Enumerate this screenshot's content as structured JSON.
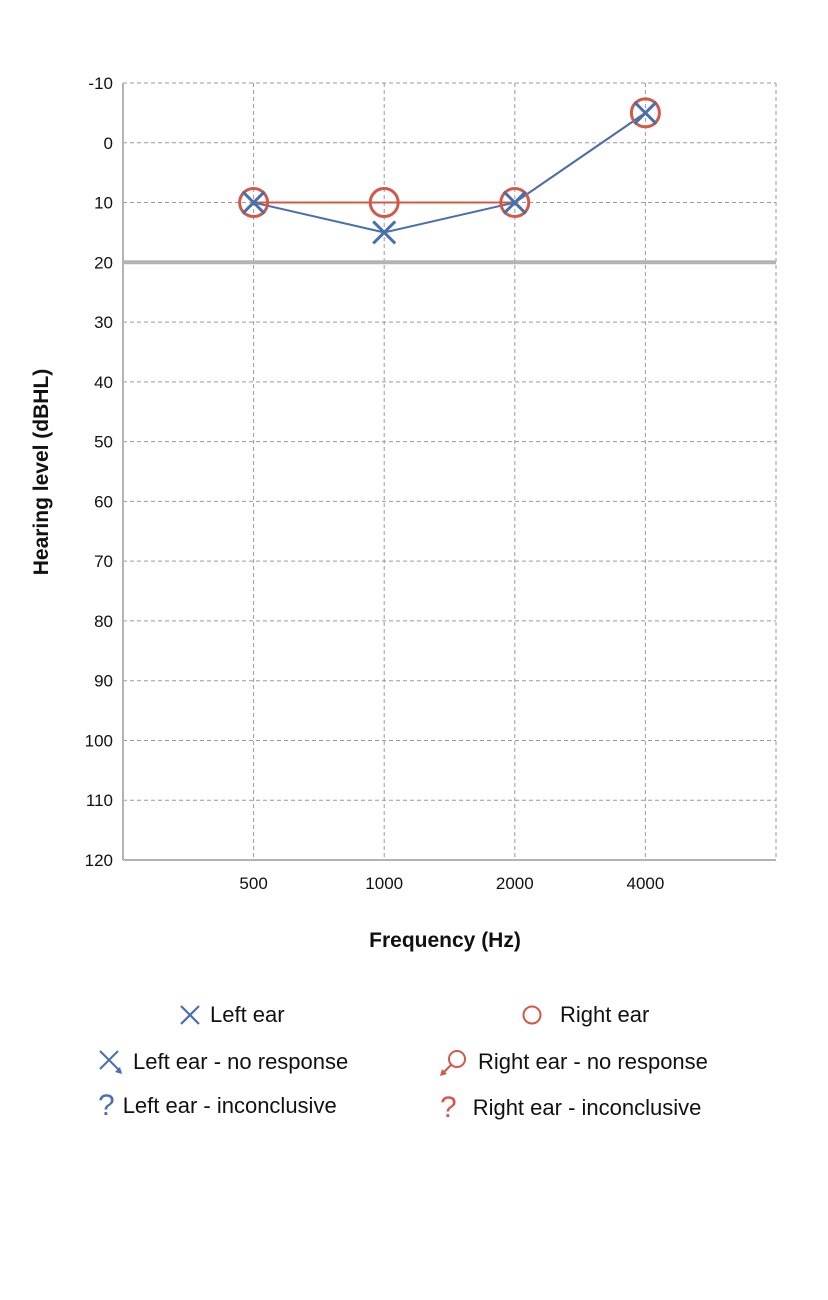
{
  "chart_data": {
    "type": "line",
    "title": "",
    "xlabel": "Frequency (Hz)",
    "ylabel": "Hearing level (dBHL)",
    "categories": [
      "500",
      "1000",
      "2000",
      "4000"
    ],
    "y_ticks": [
      -10,
      0,
      10,
      20,
      30,
      40,
      50,
      60,
      70,
      80,
      90,
      100,
      110,
      120
    ],
    "ylim": [
      -10,
      120
    ],
    "y_inverted": true,
    "grid": true,
    "reference_line": {
      "y": 20,
      "color": "#b3b3b3"
    },
    "series": [
      {
        "name": "Left ear",
        "marker": "x",
        "color": "#4a6fae",
        "values": [
          10,
          15,
          10,
          -5
        ]
      },
      {
        "name": "Right ear",
        "marker": "o",
        "color": "#d05a48",
        "values": [
          10,
          10,
          10,
          -5
        ]
      }
    ],
    "legend_position": "bottom"
  },
  "legend": {
    "left_ear": "Left ear",
    "right_ear": "Right ear",
    "left_no_response": "Left ear - no response",
    "right_no_response": "Right ear - no response",
    "left_inconclusive": "Left ear - inconclusive",
    "right_inconclusive": "Right ear - inconclusive",
    "inconclusive_symbol": "?"
  },
  "colors": {
    "left": "#4a6fae",
    "right": "#d05a48",
    "grid": "#9a9a9a",
    "axis": "#b3b3b3"
  }
}
